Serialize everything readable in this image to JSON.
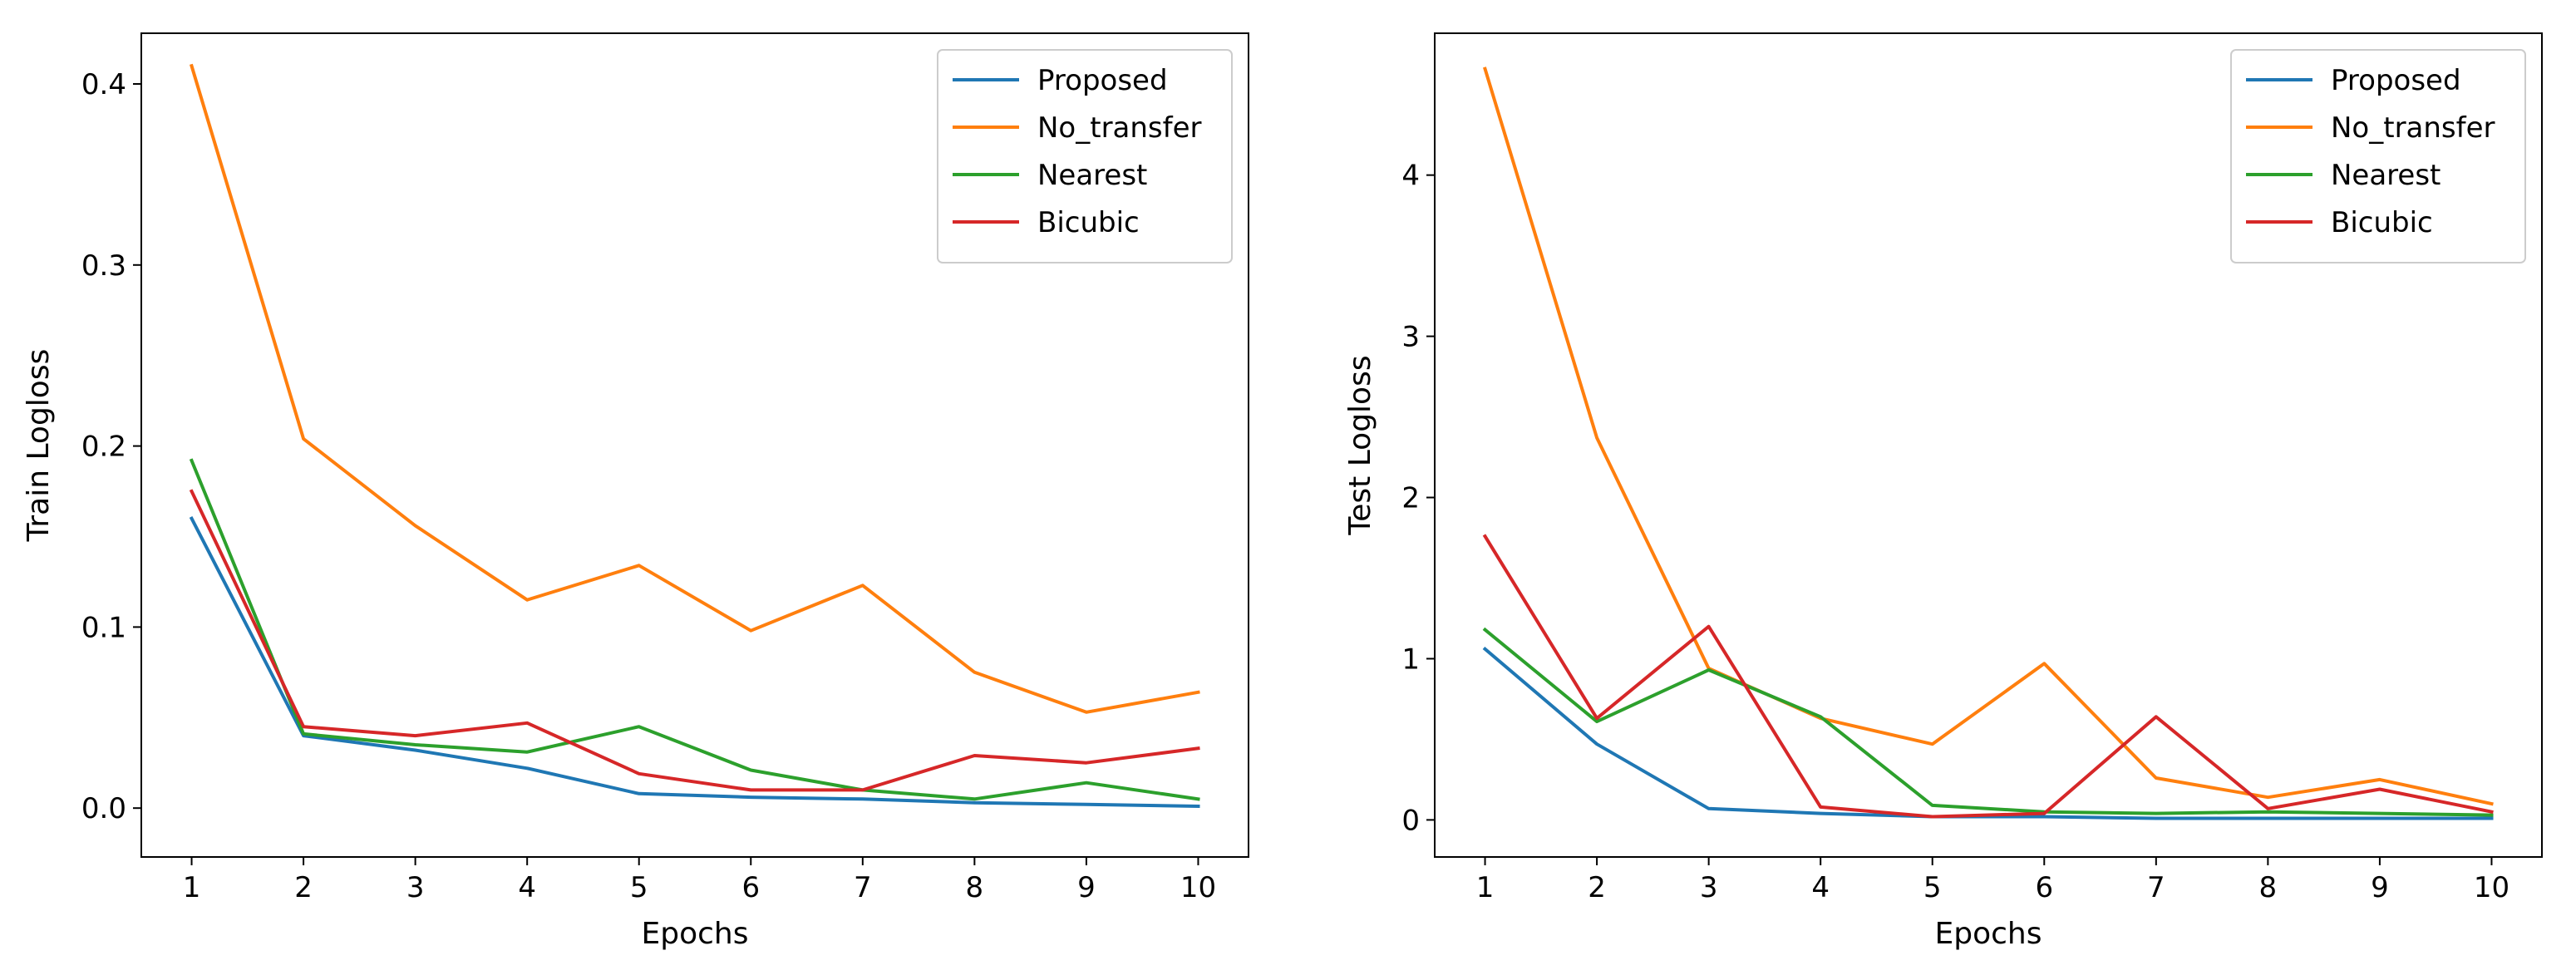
{
  "chart_data": [
    {
      "type": "line",
      "title": "",
      "xlabel": "Epochs",
      "ylabel": "Train Logloss",
      "x": [
        1,
        2,
        3,
        4,
        5,
        6,
        7,
        8,
        9,
        10
      ],
      "xlim": [
        0.55,
        10.45
      ],
      "ylim": [
        -0.027,
        0.428
      ],
      "yticks": [
        0.0,
        0.1,
        0.2,
        0.3,
        0.4
      ],
      "ytick_labels": [
        "0.0",
        "0.1",
        "0.2",
        "0.3",
        "0.4"
      ],
      "xtick_labels": [
        "1",
        "2",
        "3",
        "4",
        "5",
        "6",
        "7",
        "8",
        "9",
        "10"
      ],
      "legend_position": "top-right",
      "series": [
        {
          "name": "Proposed",
          "color": "#1f77b4",
          "values": [
            0.16,
            0.04,
            0.032,
            0.022,
            0.008,
            0.006,
            0.005,
            0.003,
            0.002,
            0.001
          ]
        },
        {
          "name": "No_transfer",
          "color": "#ff7f0e",
          "values": [
            0.41,
            0.204,
            0.156,
            0.115,
            0.134,
            0.098,
            0.123,
            0.075,
            0.053,
            0.064
          ]
        },
        {
          "name": "Nearest",
          "color": "#2ca02c",
          "values": [
            0.192,
            0.041,
            0.035,
            0.031,
            0.045,
            0.021,
            0.01,
            0.005,
            0.014,
            0.005
          ]
        },
        {
          "name": "Bicubic",
          "color": "#d62728",
          "values": [
            0.175,
            0.045,
            0.04,
            0.047,
            0.019,
            0.01,
            0.01,
            0.029,
            0.025,
            0.033
          ]
        }
      ]
    },
    {
      "type": "line",
      "title": "",
      "xlabel": "Epochs",
      "ylabel": "Test Logloss",
      "x": [
        1,
        2,
        3,
        4,
        5,
        6,
        7,
        8,
        9,
        10
      ],
      "xlim": [
        0.55,
        10.45
      ],
      "ylim": [
        -0.23,
        4.88
      ],
      "yticks": [
        0,
        1,
        2,
        3,
        4
      ],
      "ytick_labels": [
        "0",
        "1",
        "2",
        "3",
        "4"
      ],
      "xtick_labels": [
        "1",
        "2",
        "3",
        "4",
        "5",
        "6",
        "7",
        "8",
        "9",
        "10"
      ],
      "legend_position": "top-right",
      "series": [
        {
          "name": "Proposed",
          "color": "#1f77b4",
          "values": [
            1.06,
            0.47,
            0.07,
            0.04,
            0.02,
            0.02,
            0.01,
            0.01,
            0.01,
            0.01
          ]
        },
        {
          "name": "No_transfer",
          "color": "#ff7f0e",
          "values": [
            4.66,
            2.37,
            0.94,
            0.63,
            0.47,
            0.97,
            0.26,
            0.14,
            0.25,
            0.1
          ]
        },
        {
          "name": "Nearest",
          "color": "#2ca02c",
          "values": [
            1.18,
            0.61,
            0.93,
            0.64,
            0.09,
            0.05,
            0.04,
            0.05,
            0.04,
            0.03
          ]
        },
        {
          "name": "Bicubic",
          "color": "#d62728",
          "values": [
            1.76,
            0.63,
            1.2,
            0.08,
            0.02,
            0.04,
            0.64,
            0.07,
            0.19,
            0.05
          ]
        }
      ]
    }
  ]
}
